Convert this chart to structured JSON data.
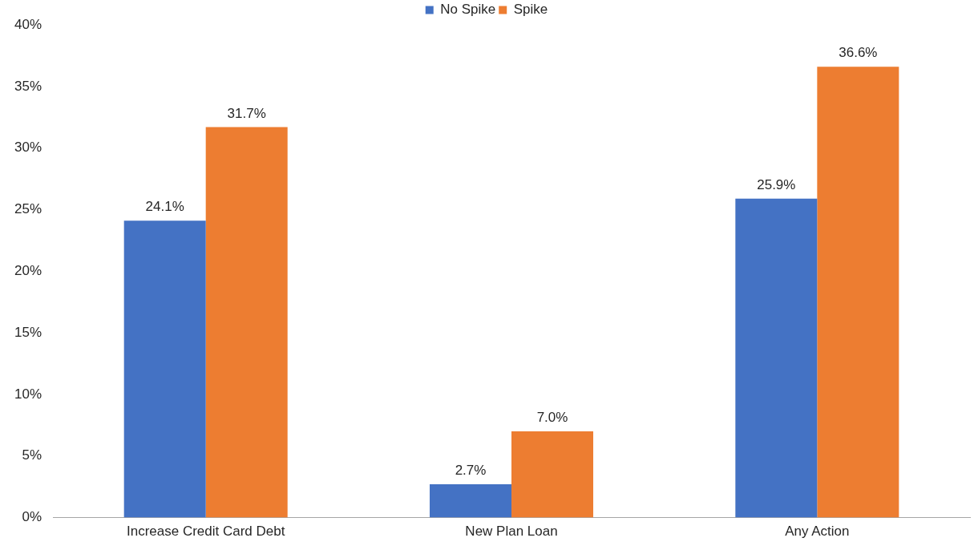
{
  "chart_data": {
    "type": "bar",
    "categories": [
      "Increase Credit Card Debt",
      "New Plan Loan",
      "Any Action"
    ],
    "series": [
      {
        "name": "No Spike",
        "color": "#4472c4",
        "values": [
          24.1,
          2.7,
          25.9
        ],
        "value_labels": [
          "24.1%",
          "2.7%",
          "25.9%"
        ]
      },
      {
        "name": "Spike",
        "color": "#ed7d31",
        "values": [
          31.7,
          7.0,
          36.6
        ],
        "value_labels": [
          "31.7%",
          "7.0%",
          "36.6%"
        ]
      }
    ],
    "ylim": [
      0,
      40
    ],
    "yticks": [
      {
        "value": 0,
        "label": "0%"
      },
      {
        "value": 5,
        "label": "5%"
      },
      {
        "value": 10,
        "label": "10%"
      },
      {
        "value": 15,
        "label": "15%"
      },
      {
        "value": 20,
        "label": "20%"
      },
      {
        "value": 25,
        "label": "25%"
      },
      {
        "value": 30,
        "label": "30%"
      },
      {
        "value": 35,
        "label": "35%"
      },
      {
        "value": 40,
        "label": "40%"
      }
    ],
    "grid": false,
    "legend": "top"
  }
}
